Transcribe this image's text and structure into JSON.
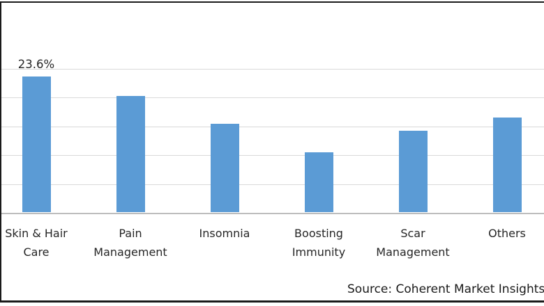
{
  "chart_data": {
    "type": "bar",
    "categories": [
      "Skin & Hair Care",
      "Pain Management",
      "Insomnia",
      "Boosting Immunity",
      "Scar Management",
      "Others"
    ],
    "values": [
      23.6,
      20.3,
      15.4,
      10.5,
      14.2,
      16.5
    ],
    "data_labels": [
      "23.6%",
      "",
      "",
      "",
      "",
      ""
    ],
    "title": "",
    "xlabel": "",
    "ylabel": "",
    "ylim": [
      0,
      25
    ],
    "grid_step": 5,
    "grid": true,
    "legend": false,
    "y_tick_labels_visible": false,
    "bar_color": "#5B9BD5",
    "gridline_color": "#D9D9D9",
    "axis_line_color": "#BDBDBD",
    "label_text_color": "#262626",
    "frame_border_color": "#1a1a1a"
  },
  "footer": {
    "source_label": "Source: Coherent Market Insights"
  }
}
